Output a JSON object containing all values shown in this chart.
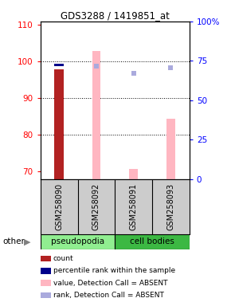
{
  "title": "GDS3288 / 1419851_at",
  "samples": [
    "GSM258090",
    "GSM258092",
    "GSM258091",
    "GSM258093"
  ],
  "group_colors": {
    "pseudopodia": "#90EE90",
    "cell bodies": "#3CB843"
  },
  "ylim_left": [
    68,
    111
  ],
  "ylim_right": [
    0,
    100
  ],
  "yticks_left": [
    70,
    80,
    90,
    100,
    110
  ],
  "yticks_right": [
    0,
    25,
    50,
    75,
    100
  ],
  "ytick_labels_right": [
    "0",
    "25",
    "50",
    "75",
    "100%"
  ],
  "count_color": "#B22222",
  "rank_color": "#00008B",
  "absent_value_color": "#FFB6C1",
  "absent_rank_color": "#AAAADD",
  "count_values": [
    98.0,
    null,
    null,
    null
  ],
  "rank_values_pct": [
    71.5,
    null,
    null,
    null
  ],
  "absent_value_values": [
    null,
    103.0,
    70.8,
    84.5
  ],
  "absent_rank_values_pct": [
    null,
    71.5,
    67.0,
    70.5
  ],
  "legend_items": [
    {
      "color": "#B22222",
      "label": "count"
    },
    {
      "color": "#00008B",
      "label": "percentile rank within the sample"
    },
    {
      "color": "#FFB6C1",
      "label": "value, Detection Call = ABSENT"
    },
    {
      "color": "#AAAADD",
      "label": "rank, Detection Call = ABSENT"
    }
  ],
  "other_label": "other",
  "background_color": "#ffffff"
}
